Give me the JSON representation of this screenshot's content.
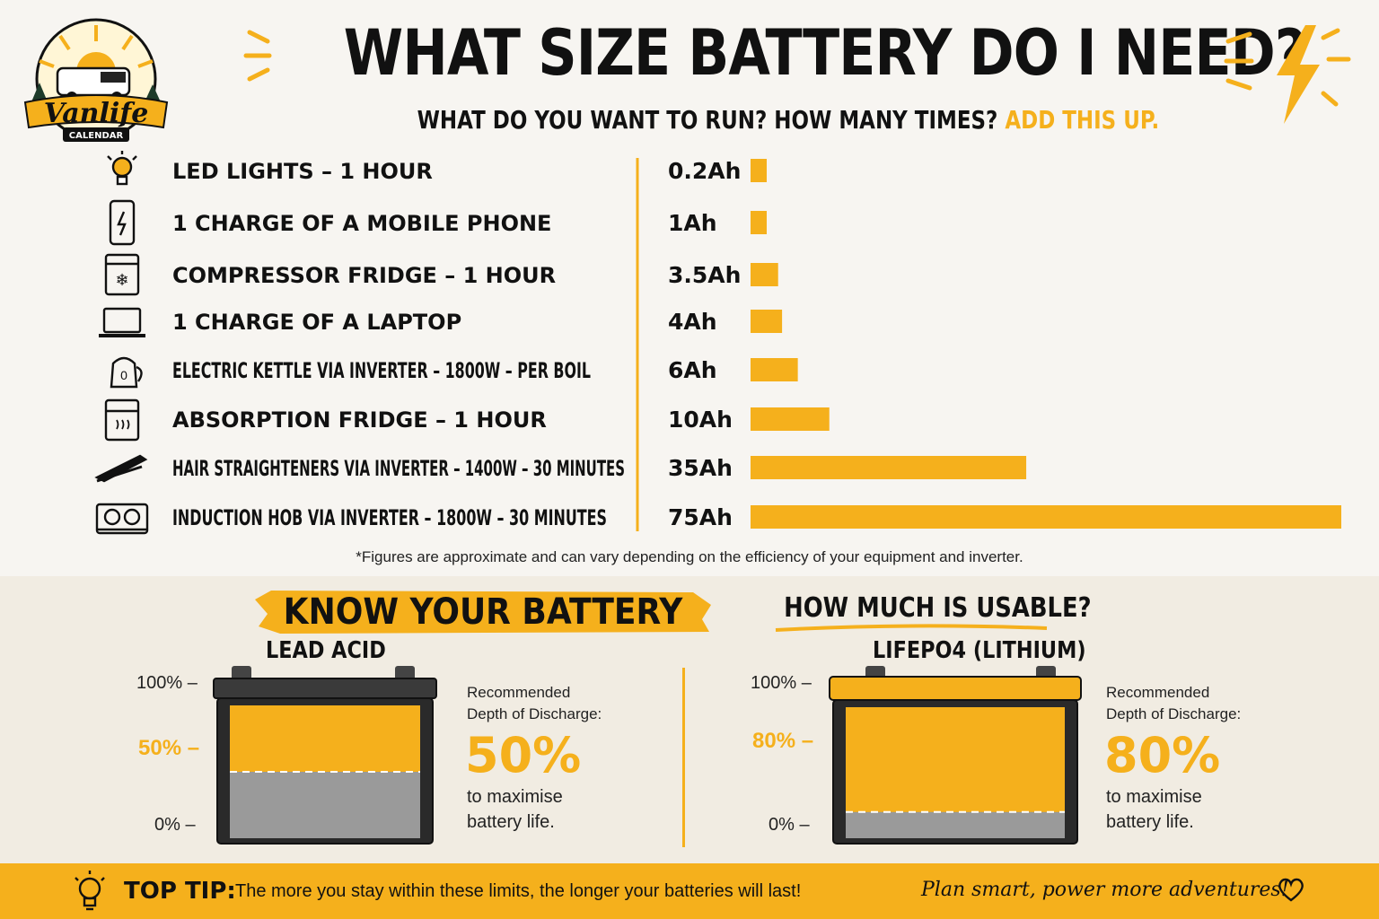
{
  "logo": {
    "name": "Vanlife",
    "sub": "CALENDAR"
  },
  "header": {
    "title": "WHAT SIZE BATTERY DO I NEED?",
    "subtitle_main": "WHAT DO YOU WANT TO RUN? HOW MANY TIMES?",
    "subtitle_accent": "ADD THIS UP."
  },
  "colors": {
    "accent": "#f5b01c",
    "ink": "#111111",
    "band": "#f1ece2"
  },
  "chart_data": {
    "type": "bar",
    "orientation": "horizontal",
    "categories": [
      "LED LIGHTS – 1 HOUR",
      "1 CHARGE OF A MOBILE PHONE",
      "COMPRESSOR FRIDGE – 1 HOUR",
      "1 CHARGE OF A LAPTOP",
      "ELECTRIC KETTLE VIA INVERTER – 1800W – PER BOIL",
      "ABSORPTION FRIDGE – 1 HOUR",
      "HAIR STRAIGHTENERS VIA INVERTER – 1400W – 30 MINUTES",
      "INDUCTION HOB VIA INVERTER – 1800W – 30 MINUTES"
    ],
    "value_labels": [
      "0.2Ah",
      "1Ah",
      "3.5Ah",
      "4Ah",
      "6Ah",
      "10Ah",
      "35Ah",
      "75Ah"
    ],
    "values": [
      0.2,
      1,
      3.5,
      4,
      6,
      10,
      35,
      75
    ],
    "icons": [
      "lightbulb-icon",
      "mobile-phone-icon",
      "compressor-fridge-icon",
      "laptop-icon",
      "kettle-icon",
      "absorption-fridge-icon",
      "hair-straightener-icon",
      "induction-hob-icon"
    ],
    "unit": "Ah",
    "grid": false,
    "legend": "none"
  },
  "footnote": "*Figures are approximate and can vary depending on the efficiency of your equipment and inverter.",
  "know": {
    "title": "KNOW YOUR BATTERY",
    "lead": {
      "name": "LEAD ACID",
      "ticks": [
        "100% –",
        "50% –",
        "0% –"
      ],
      "usable_fraction": 0.5,
      "rec_line1": "Recommended",
      "rec_line2": "Depth of Discharge:",
      "percent": "50%",
      "tail1": "to maximise",
      "tail2": "battery life."
    },
    "usable_title": "HOW MUCH IS USABLE?",
    "lithium": {
      "name": "LIFEPO4 (LITHIUM)",
      "ticks": [
        "100% –",
        "80% –",
        "0% –"
      ],
      "usable_fraction": 0.8,
      "rec_line1": "Recommended",
      "rec_line2": "Depth of Discharge:",
      "percent": "80%",
      "tail1": "to maximise",
      "tail2": "battery life."
    }
  },
  "tip": {
    "title": "TOP TIP:",
    "text": "The more you stay within these limits, the longer your batteries will last!",
    "tagline": "Plan smart, power more adventures!"
  }
}
